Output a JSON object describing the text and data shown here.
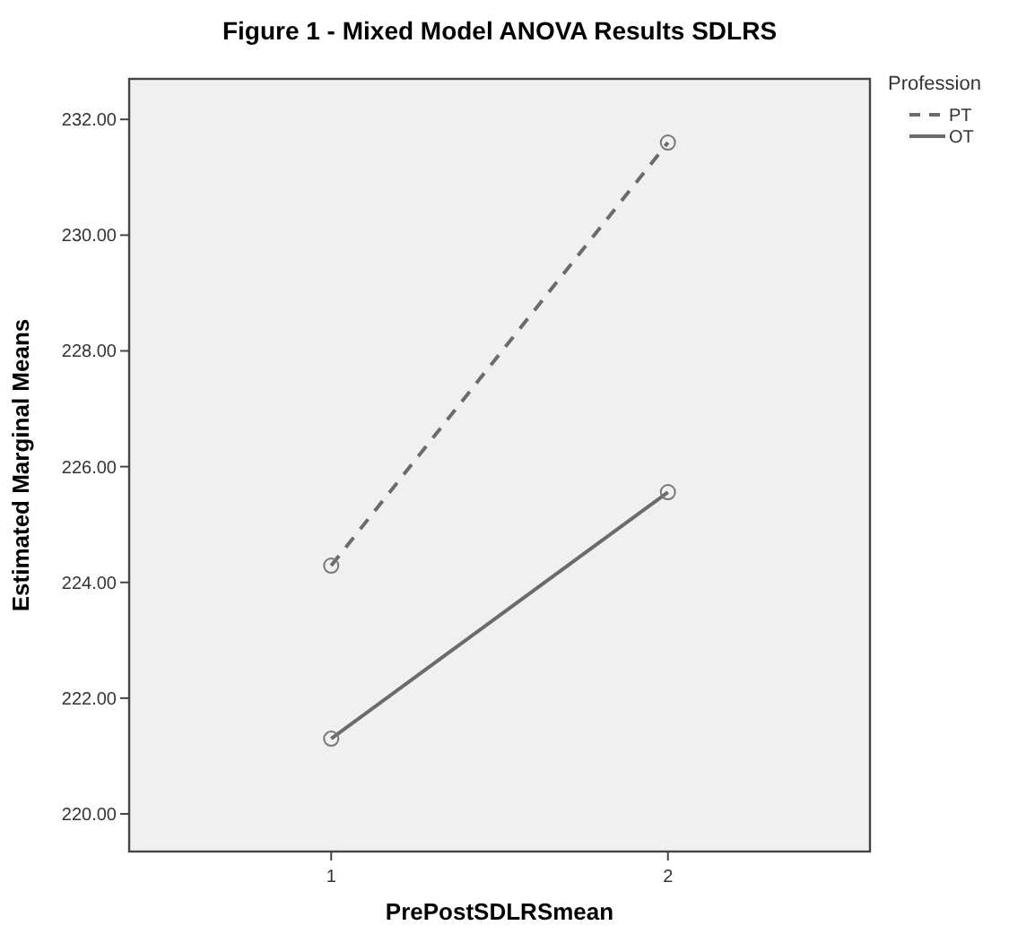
{
  "chart_data": {
    "type": "line",
    "title": "Figure 1 - Mixed Model ANOVA Results SDLRS",
    "xlabel": "PrePostSDLRSmean",
    "ylabel": "Estimated Marginal Means",
    "legend_title": "Profession",
    "categories": [
      "1",
      "2"
    ],
    "series": [
      {
        "name": "PT",
        "color": "#6b6b6b",
        "values": [
          224.29,
          231.6
        ],
        "line_style": "dashed"
      },
      {
        "name": "OT",
        "color": "#6b6b6b",
        "values": [
          221.3,
          225.56
        ],
        "line_style": "solid"
      }
    ],
    "ylim": [
      219.35,
      232.7
    ],
    "yticks": [
      {
        "value": 220,
        "label": "220.00"
      },
      {
        "value": 222,
        "label": "222.00"
      },
      {
        "value": 224,
        "label": "224.00"
      },
      {
        "value": 226,
        "label": "226.00"
      },
      {
        "value": 228,
        "label": "228.00"
      },
      {
        "value": 230,
        "label": "230.00"
      },
      {
        "value": 232,
        "label": "232.00"
      }
    ],
    "marker": "circle",
    "legend": "top right",
    "grid": false
  }
}
